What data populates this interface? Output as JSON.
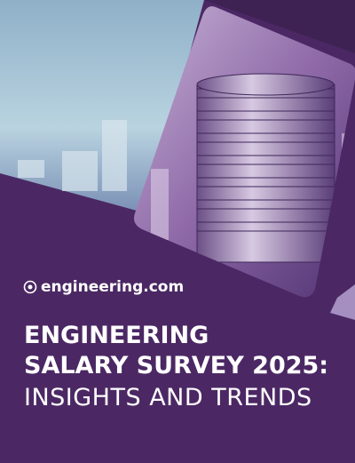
{
  "logo": {
    "text": "engineering.com"
  },
  "title": {
    "lines": [
      "ENGINEERING",
      "SALARY SURVEY 2025:",
      "INSIGHTS AND TRENDS"
    ]
  }
}
